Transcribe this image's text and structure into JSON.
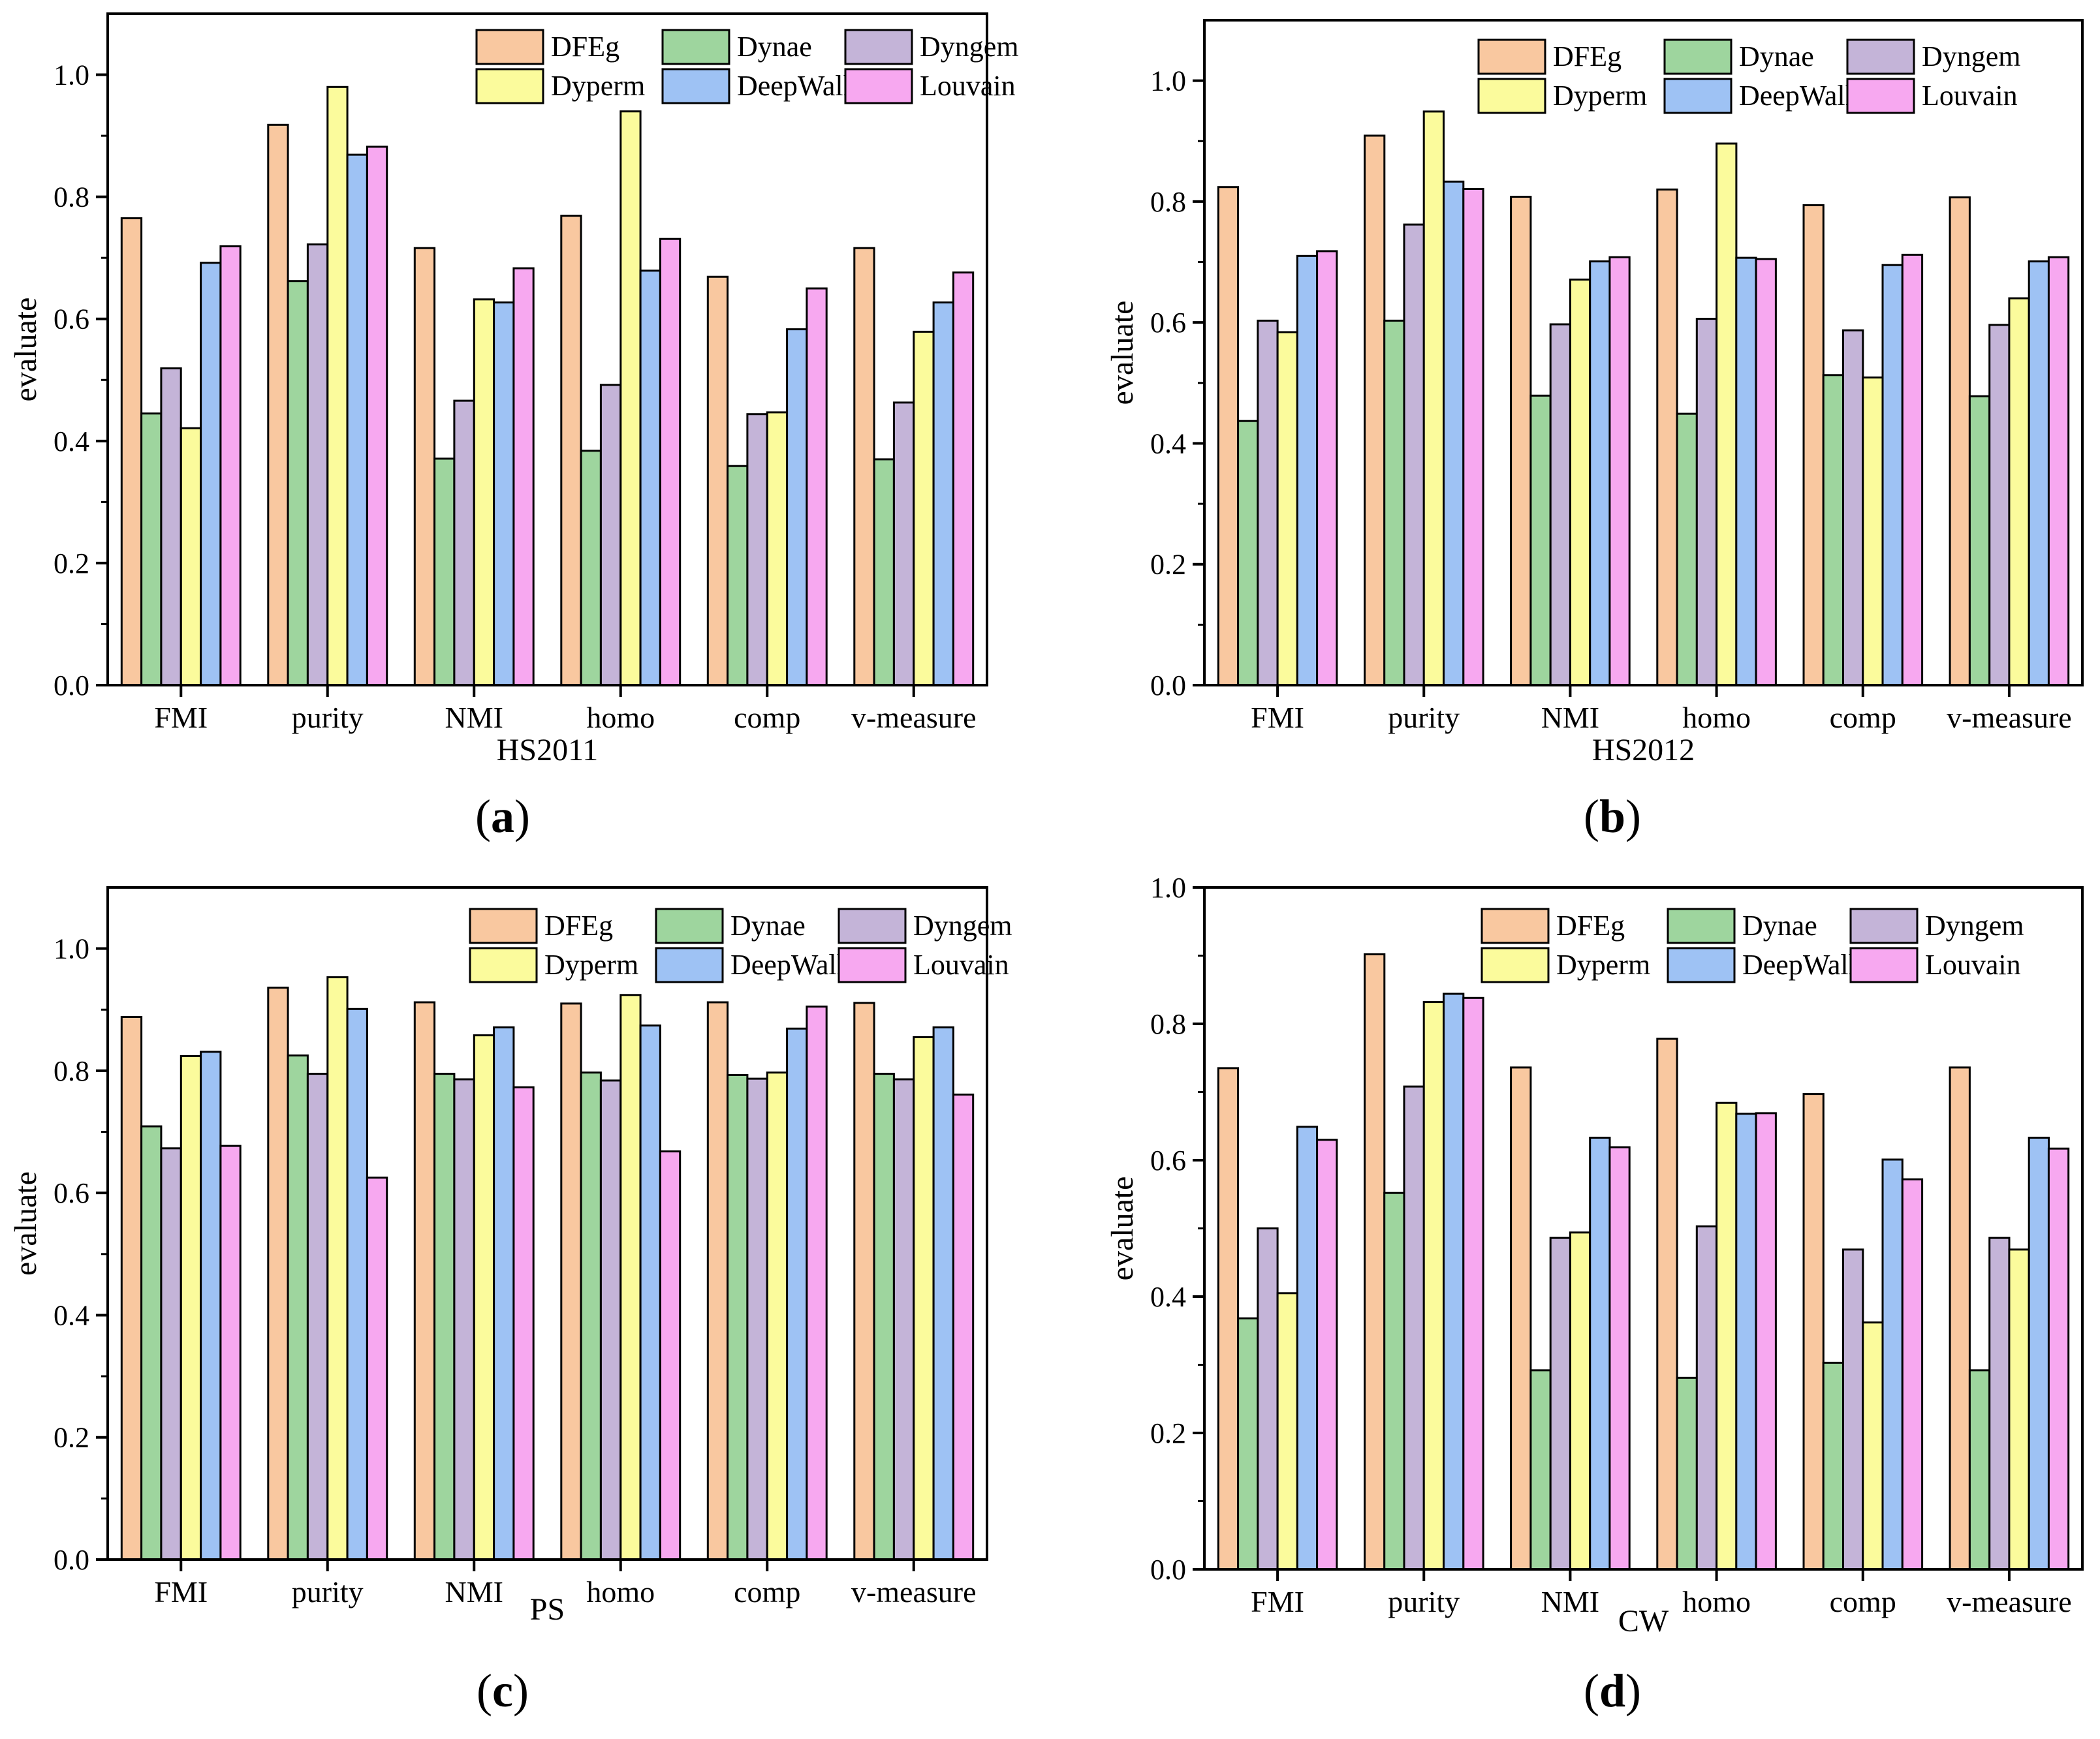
{
  "colors": {
    "DFEg": "#f9c8a0",
    "Dynae": "#9ed59e",
    "Dyngem": "#c4b4d8",
    "Dyperm": "#fbfb9c",
    "DeepWalk": "#9ec2f4",
    "Louvain": "#f7a8f0",
    "stroke": "#000000"
  },
  "chart_data": [
    {
      "type": "bar",
      "panel_label": "(a)",
      "panel_letter": "a",
      "xlabel": "HS2011",
      "ylabel": "evaluate",
      "ylim": [
        0,
        1.1
      ],
      "yticks": [
        "0.0",
        "0.2",
        "0.4",
        "0.6",
        "0.8",
        "1.0"
      ],
      "categories": [
        "FMI",
        "purity",
        "NMI",
        "homo",
        "comp",
        "v-measure"
      ],
      "series": [
        {
          "name": "DFEg",
          "values": [
            0.765,
            0.918,
            0.716,
            0.769,
            0.669,
            0.716
          ]
        },
        {
          "name": "Dynae",
          "values": [
            0.445,
            0.662,
            0.371,
            0.384,
            0.359,
            0.37
          ]
        },
        {
          "name": "Dyngem",
          "values": [
            0.519,
            0.722,
            0.466,
            0.492,
            0.444,
            0.463
          ]
        },
        {
          "name": "Dyperm",
          "values": [
            0.421,
            0.98,
            0.632,
            0.94,
            0.447,
            0.579
          ]
        },
        {
          "name": "DeepWalk",
          "values": [
            0.692,
            0.869,
            0.627,
            0.679,
            0.583,
            0.627
          ]
        },
        {
          "name": "Louvain",
          "values": [
            0.719,
            0.882,
            0.683,
            0.731,
            0.65,
            0.676
          ]
        }
      ],
      "legend": "top-right"
    },
    {
      "type": "bar",
      "panel_label": "(b)",
      "panel_letter": "b",
      "xlabel": "HS2012",
      "ylabel": "evaluate",
      "ylim": [
        0,
        1.1
      ],
      "yticks": [
        "0.0",
        "0.2",
        "0.4",
        "0.6",
        "0.8",
        "1.0"
      ],
      "categories": [
        "FMI",
        "purity",
        "NMI",
        "homo",
        "comp",
        "v-measure"
      ],
      "series": [
        {
          "name": "DFEg",
          "values": [
            0.824,
            0.909,
            0.808,
            0.82,
            0.794,
            0.807
          ]
        },
        {
          "name": "Dynae",
          "values": [
            0.437,
            0.603,
            0.479,
            0.449,
            0.513,
            0.478
          ]
        },
        {
          "name": "Dyngem",
          "values": [
            0.603,
            0.762,
            0.597,
            0.606,
            0.587,
            0.596
          ]
        },
        {
          "name": "Dyperm",
          "values": [
            0.584,
            0.949,
            0.671,
            0.896,
            0.509,
            0.64
          ]
        },
        {
          "name": "DeepWalk",
          "values": [
            0.71,
            0.833,
            0.701,
            0.707,
            0.695,
            0.701
          ]
        },
        {
          "name": "Louvain",
          "values": [
            0.718,
            0.821,
            0.708,
            0.705,
            0.712,
            0.708
          ]
        }
      ],
      "legend": "top-right"
    },
    {
      "type": "bar",
      "panel_label": "(c)",
      "panel_letter": "c",
      "xlabel": "PS",
      "ylabel": "evaluate",
      "ylim": [
        0,
        1.1
      ],
      "yticks": [
        "0.0",
        "0.2",
        "0.4",
        "0.6",
        "0.8",
        "1.0"
      ],
      "categories": [
        "FMI",
        "purity",
        "NMI",
        "homo",
        "comp",
        "v-measure"
      ],
      "series": [
        {
          "name": "DFEg",
          "values": [
            0.888,
            0.936,
            0.912,
            0.91,
            0.912,
            0.911
          ]
        },
        {
          "name": "Dynae",
          "values": [
            0.709,
            0.825,
            0.795,
            0.797,
            0.793,
            0.795
          ]
        },
        {
          "name": "Dyngem",
          "values": [
            0.673,
            0.795,
            0.786,
            0.784,
            0.787,
            0.786
          ]
        },
        {
          "name": "Dyperm",
          "values": [
            0.824,
            0.953,
            0.858,
            0.924,
            0.797,
            0.855
          ]
        },
        {
          "name": "DeepWalk",
          "values": [
            0.831,
            0.901,
            0.871,
            0.874,
            0.869,
            0.871
          ]
        },
        {
          "name": "Louvain",
          "values": [
            0.677,
            0.625,
            0.773,
            0.668,
            0.905,
            0.761
          ]
        }
      ],
      "legend": "top-right"
    },
    {
      "type": "bar",
      "panel_label": "(d)",
      "panel_letter": "d",
      "xlabel": "CW",
      "ylabel": "evaluate",
      "ylim": [
        0,
        1.0
      ],
      "yticks": [
        "0.0",
        "0.2",
        "0.4",
        "0.6",
        "0.8",
        "1.0"
      ],
      "categories": [
        "FMI",
        "purity",
        "NMI",
        "homo",
        "comp",
        "v-measure"
      ],
      "series": [
        {
          "name": "DFEg",
          "values": [
            0.735,
            0.902,
            0.736,
            0.778,
            0.697,
            0.736
          ]
        },
        {
          "name": "Dynae",
          "values": [
            0.368,
            0.552,
            0.292,
            0.281,
            0.303,
            0.292
          ]
        },
        {
          "name": "Dyngem",
          "values": [
            0.5,
            0.708,
            0.486,
            0.503,
            0.469,
            0.486
          ]
        },
        {
          "name": "Dyperm",
          "values": [
            0.405,
            0.832,
            0.494,
            0.684,
            0.362,
            0.469
          ]
        },
        {
          "name": "DeepWalk",
          "values": [
            0.649,
            0.844,
            0.633,
            0.668,
            0.601,
            0.633
          ]
        },
        {
          "name": "Louvain",
          "values": [
            0.63,
            0.838,
            0.619,
            0.669,
            0.572,
            0.617
          ]
        }
      ],
      "legend": "top-right"
    }
  ]
}
